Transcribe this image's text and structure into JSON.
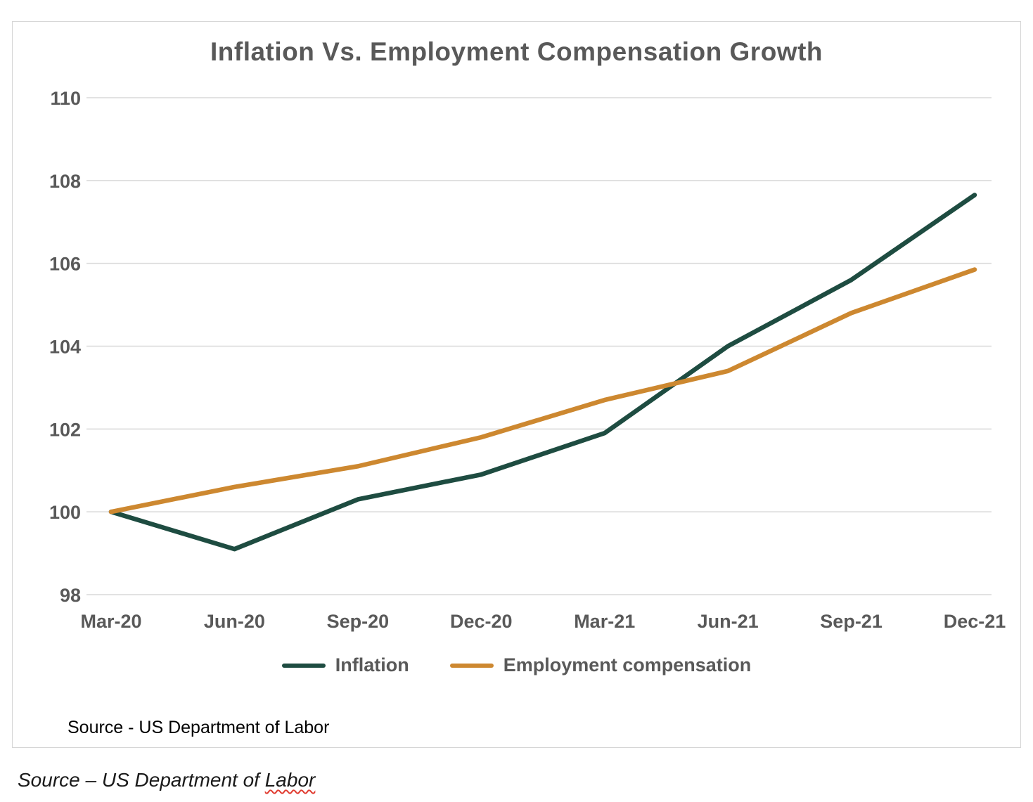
{
  "chart_data": {
    "type": "line",
    "title": "Inflation Vs. Employment Compensation Growth",
    "xlabel": "",
    "ylabel": "",
    "categories": [
      "Mar-20",
      "Jun-20",
      "Sep-20",
      "Dec-20",
      "Mar-21",
      "Jun-21",
      "Sep-21",
      "Dec-21"
    ],
    "series": [
      {
        "name": "Inflation",
        "color": "#1e4c41",
        "values": [
          100.0,
          99.1,
          100.3,
          100.9,
          101.9,
          104.0,
          105.6,
          107.65
        ]
      },
      {
        "name": "Employment compensation",
        "color": "#cd8830",
        "values": [
          100.0,
          100.6,
          101.1,
          101.8,
          102.7,
          103.4,
          104.8,
          105.85
        ]
      }
    ],
    "ylim": [
      98,
      110
    ],
    "yticks": [
      98,
      100,
      102,
      104,
      106,
      108,
      110
    ],
    "grid": "horizontal",
    "gridline_color": "#d9d9d9",
    "legend_position": "bottom"
  },
  "sources": {
    "inner": "Source - US Department of Labor",
    "outer_prefix": "Source – US Department of ",
    "outer_spellchecked_word": "Labor"
  }
}
